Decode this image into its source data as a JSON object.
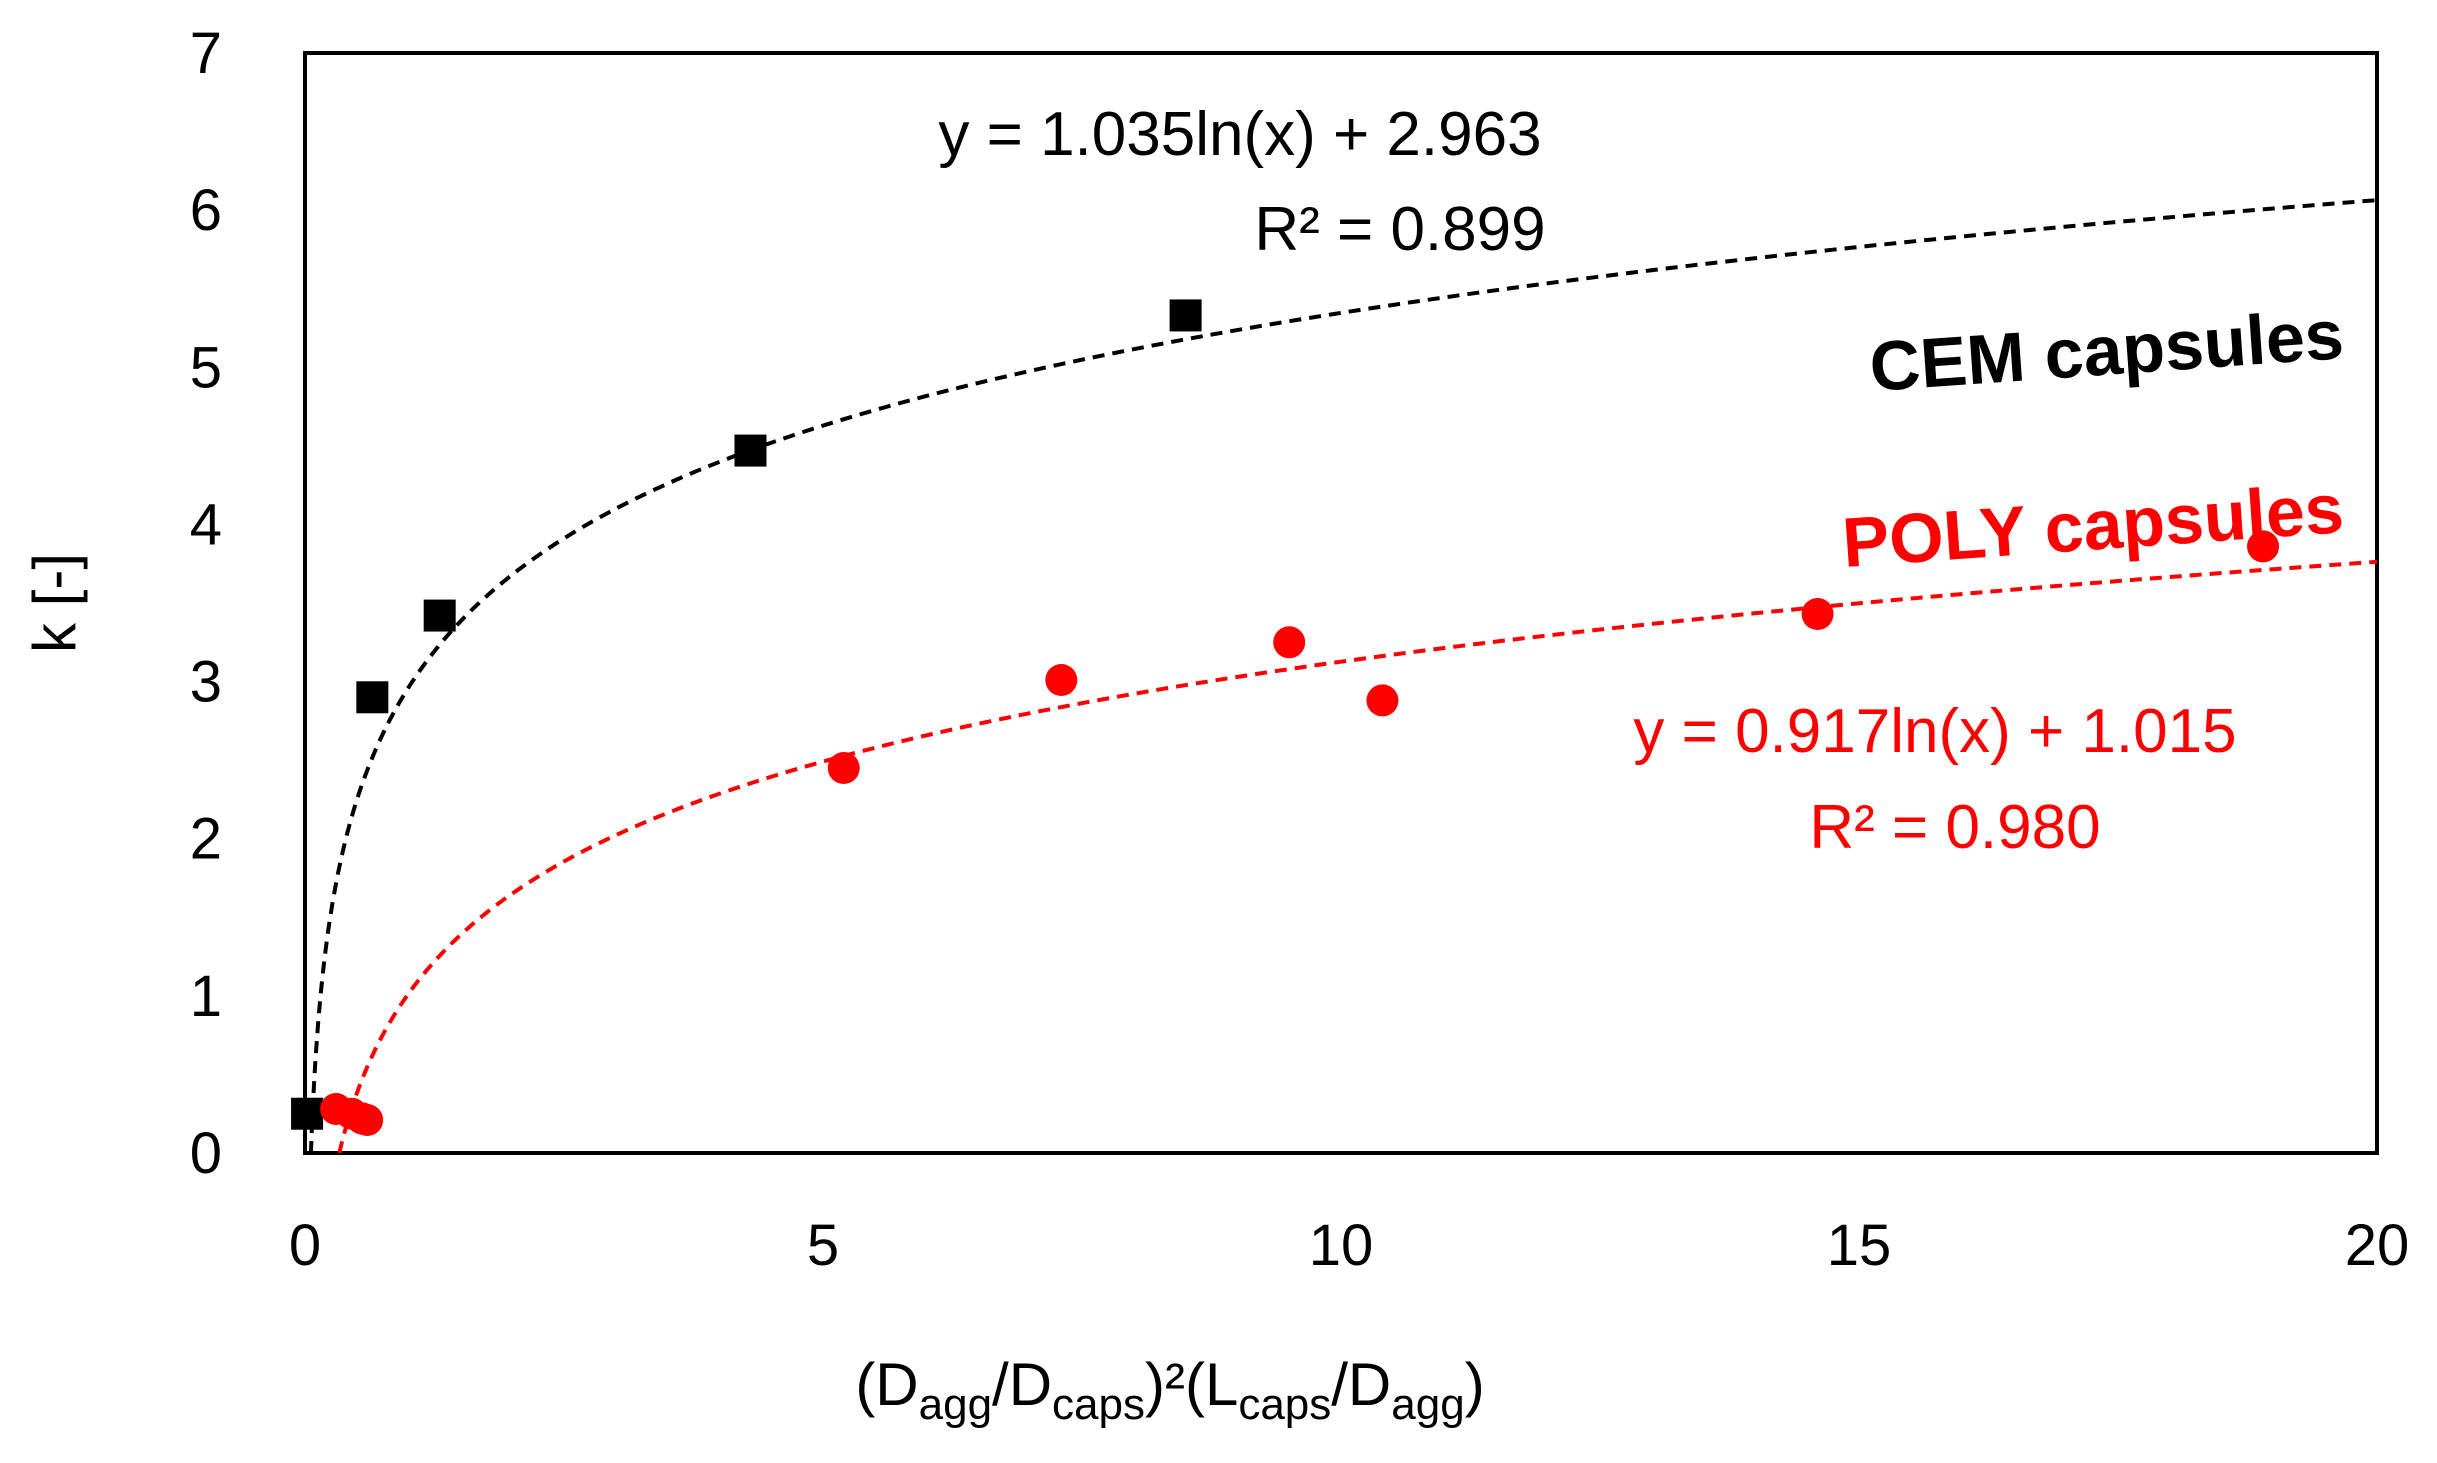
{
  "chart_data": {
    "type": "scatter",
    "xlabel": {
      "parts": [
        {
          "t": "(D"
        },
        {
          "t": "agg",
          "sub": true
        },
        {
          "t": "/D"
        },
        {
          "t": "caps",
          "sub": true
        },
        {
          "t": ")²(L"
        },
        {
          "t": "caps",
          "sub": true
        },
        {
          "t": "/D"
        },
        {
          "t": "agg",
          "sub": true
        },
        {
          "t": ")"
        }
      ]
    },
    "ylabel": "k [-]",
    "xlim": [
      0,
      20
    ],
    "ylim": [
      0,
      7
    ],
    "xticks": [
      0,
      5,
      10,
      15,
      20
    ],
    "xtick_labels": [
      "0",
      "5",
      "10",
      "15",
      "20"
    ],
    "yticks": [
      0,
      1,
      2,
      3,
      4,
      5,
      6,
      7
    ],
    "ytick_labels": [
      "0",
      "1",
      "2",
      "3",
      "4",
      "5",
      "6",
      "7"
    ],
    "grid": false,
    "series": [
      {
        "name": "CEM capsules",
        "label": "CEM capsules",
        "marker": "square",
        "color": "#000000",
        "x": [
          0.02,
          0.65,
          1.3,
          4.3,
          8.5
        ],
        "y": [
          0.25,
          2.9,
          3.42,
          4.47,
          5.33
        ],
        "trendline": {
          "type": "log",
          "a": 1.035,
          "b": 2.963,
          "equation": "y = 1.035ln(x) + 2.963",
          "r2": "R² = 0.899"
        }
      },
      {
        "name": "POLY capsules",
        "label": "POLY capsules",
        "marker": "circle",
        "color": "#ff0000",
        "x": [
          0.3,
          0.45,
          0.55,
          0.6,
          5.2,
          7.3,
          9.5,
          10.4,
          14.6,
          18.9
        ],
        "y": [
          0.28,
          0.25,
          0.22,
          0.21,
          2.45,
          3.01,
          3.25,
          2.88,
          3.43,
          3.86
        ],
        "trendline": {
          "type": "log",
          "a": 0.917,
          "b": 1.015,
          "equation": "y = 0.917ln(x) + 1.015",
          "r2": "R² = 0.980"
        }
      }
    ]
  }
}
